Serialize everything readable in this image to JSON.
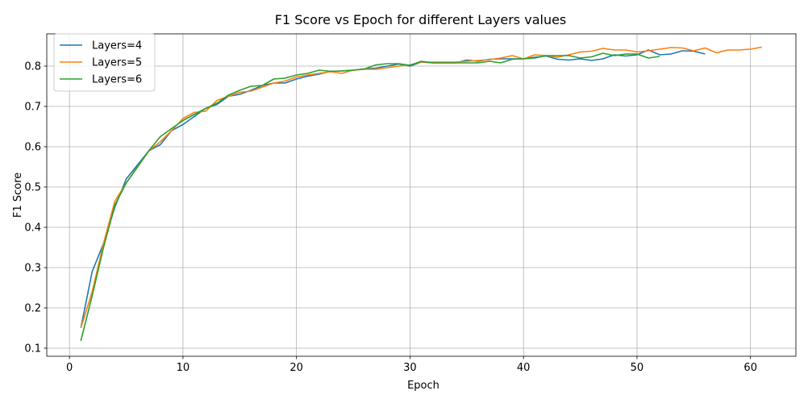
{
  "chart_data": {
    "type": "line",
    "title": "F1 Score vs Epoch for different Layers values",
    "xlabel": "Epoch",
    "ylabel": "F1 Score",
    "xlim": [
      -2,
      64
    ],
    "ylim": [
      0.08,
      0.88
    ],
    "xticks": [
      0,
      10,
      20,
      30,
      40,
      50,
      60
    ],
    "yticks": [
      0.1,
      0.2,
      0.3,
      0.4,
      0.5,
      0.6,
      0.7,
      0.8
    ],
    "grid": true,
    "legend_position": "top-left",
    "series": [
      {
        "name": "Layers=4",
        "color": "#1f77b4",
        "x": [
          1,
          2,
          3,
          4,
          5,
          6,
          7,
          8,
          9,
          10,
          11,
          12,
          13,
          14,
          15,
          16,
          17,
          18,
          19,
          20,
          21,
          22,
          23,
          24,
          25,
          26,
          27,
          28,
          29,
          30,
          31,
          32,
          33,
          34,
          35,
          36,
          37,
          38,
          39,
          40,
          41,
          42,
          43,
          44,
          45,
          46,
          47,
          48,
          49,
          50,
          51,
          52,
          53,
          54,
          55,
          56
        ],
        "y": [
          0.15,
          0.29,
          0.36,
          0.45,
          0.52,
          0.555,
          0.59,
          0.605,
          0.64,
          0.655,
          0.675,
          0.695,
          0.705,
          0.725,
          0.73,
          0.74,
          0.752,
          0.758,
          0.758,
          0.768,
          0.775,
          0.78,
          0.787,
          0.788,
          0.79,
          0.793,
          0.795,
          0.8,
          0.805,
          0.8,
          0.81,
          0.808,
          0.808,
          0.808,
          0.815,
          0.812,
          0.817,
          0.818,
          0.818,
          0.818,
          0.822,
          0.825,
          0.817,
          0.815,
          0.818,
          0.814,
          0.818,
          0.828,
          0.825,
          0.828,
          0.84,
          0.828,
          0.83,
          0.838,
          0.837,
          0.83
        ]
      },
      {
        "name": "Layers=5",
        "color": "#ff7f0e",
        "x": [
          1,
          2,
          3,
          4,
          5,
          6,
          7,
          8,
          9,
          10,
          11,
          12,
          13,
          14,
          15,
          16,
          17,
          18,
          19,
          20,
          21,
          22,
          23,
          24,
          25,
          26,
          27,
          28,
          29,
          30,
          31,
          32,
          33,
          34,
          35,
          36,
          37,
          38,
          39,
          40,
          41,
          42,
          43,
          44,
          45,
          46,
          47,
          48,
          49,
          50,
          51,
          52,
          53,
          54,
          55,
          56,
          57,
          58,
          59,
          60,
          61
        ],
        "y": [
          0.15,
          0.24,
          0.36,
          0.465,
          0.51,
          0.55,
          0.59,
          0.612,
          0.64,
          0.67,
          0.685,
          0.688,
          0.715,
          0.725,
          0.735,
          0.738,
          0.748,
          0.758,
          0.763,
          0.773,
          0.778,
          0.782,
          0.786,
          0.782,
          0.79,
          0.792,
          0.792,
          0.796,
          0.8,
          0.803,
          0.81,
          0.81,
          0.81,
          0.81,
          0.812,
          0.814,
          0.816,
          0.82,
          0.826,
          0.818,
          0.828,
          0.826,
          0.822,
          0.828,
          0.835,
          0.837,
          0.844,
          0.84,
          0.84,
          0.835,
          0.838,
          0.842,
          0.846,
          0.845,
          0.838,
          0.845,
          0.833,
          0.84,
          0.84,
          0.842,
          0.847
        ]
      },
      {
        "name": "Layers=6",
        "color": "#2ca02c",
        "x": [
          1,
          2,
          3,
          4,
          5,
          6,
          7,
          8,
          9,
          10,
          11,
          12,
          13,
          14,
          15,
          16,
          17,
          18,
          19,
          20,
          21,
          22,
          23,
          24,
          25,
          26,
          27,
          28,
          29,
          30,
          31,
          32,
          33,
          34,
          35,
          36,
          37,
          38,
          39,
          40,
          41,
          42,
          43,
          44,
          45,
          46,
          47,
          48,
          49,
          50,
          51,
          52
        ],
        "y": [
          0.118,
          0.23,
          0.35,
          0.455,
          0.51,
          0.55,
          0.59,
          0.625,
          0.645,
          0.665,
          0.68,
          0.695,
          0.708,
          0.728,
          0.74,
          0.75,
          0.752,
          0.768,
          0.77,
          0.778,
          0.782,
          0.79,
          0.787,
          0.788,
          0.79,
          0.793,
          0.803,
          0.806,
          0.806,
          0.802,
          0.812,
          0.808,
          0.808,
          0.808,
          0.808,
          0.808,
          0.812,
          0.808,
          0.817,
          0.818,
          0.82,
          0.826,
          0.826,
          0.826,
          0.82,
          0.823,
          0.832,
          0.826,
          0.83,
          0.83,
          0.82,
          0.824
        ]
      }
    ]
  }
}
